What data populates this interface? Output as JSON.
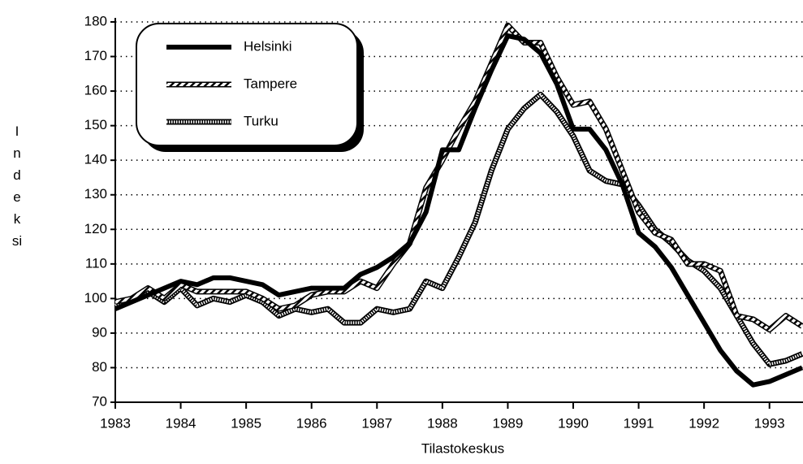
{
  "chart_data": {
    "type": "line",
    "x_label": "Tilastokeskus",
    "y_label": "Indeksi",
    "x": [
      1983,
      1983.25,
      1983.5,
      1983.75,
      1984,
      1984.25,
      1984.5,
      1984.75,
      1985,
      1985.25,
      1985.5,
      1985.75,
      1986,
      1986.25,
      1986.5,
      1986.75,
      1987,
      1987.25,
      1987.5,
      1987.75,
      1988,
      1988.25,
      1988.5,
      1988.75,
      1989,
      1989.25,
      1989.5,
      1989.75,
      1990,
      1990.25,
      1990.5,
      1990.75,
      1991,
      1991.25,
      1991.5,
      1991.75,
      1992,
      1992.25,
      1992.5,
      1992.75,
      1993,
      1993.25,
      1993.5
    ],
    "series": [
      {
        "name": "Helsinki",
        "color": "#000000",
        "style": "solid",
        "values": [
          97,
          99,
          101,
          103,
          105,
          104,
          106,
          106,
          105,
          104,
          101,
          102,
          103,
          103,
          103,
          107,
          109,
          112,
          116,
          125,
          143,
          143,
          155,
          166,
          176,
          175,
          171,
          162,
          149,
          149,
          143,
          133,
          119,
          115,
          109,
          101,
          93,
          85,
          79,
          75,
          76,
          78,
          80
        ]
      },
      {
        "name": "Tampere",
        "color": "#000000",
        "style": "hatched",
        "values": [
          99,
          100,
          103,
          100,
          104,
          102,
          102,
          102,
          102,
          100,
          97,
          98,
          101,
          102,
          102,
          105,
          103,
          110,
          116,
          132,
          140,
          149,
          157,
          168,
          179,
          174,
          174,
          164,
          156,
          157,
          149,
          137,
          125,
          119,
          117,
          110,
          110,
          108,
          95,
          94,
          91,
          95,
          92
        ]
      },
      {
        "name": "Turku",
        "color": "#000000",
        "style": "dotted",
        "values": [
          98,
          100,
          102,
          99,
          103,
          98,
          100,
          99,
          101,
          99,
          95,
          97,
          96,
          97,
          93,
          93,
          97,
          96,
          97,
          105,
          103,
          112,
          122,
          137,
          149,
          155,
          159,
          154,
          147,
          137,
          134,
          133,
          127,
          120,
          116,
          111,
          108,
          103,
          95,
          87,
          81,
          82,
          84
        ]
      }
    ],
    "xlim": [
      1983,
      1993.5
    ],
    "xticks": [
      1983,
      1984,
      1985,
      1986,
      1987,
      1988,
      1989,
      1990,
      1991,
      1992,
      1993
    ],
    "ylim": [
      70,
      180
    ],
    "yticks": [
      70,
      80,
      90,
      100,
      110,
      120,
      130,
      140,
      150,
      160,
      170,
      180
    ],
    "grid": true,
    "legend": "upper left"
  }
}
